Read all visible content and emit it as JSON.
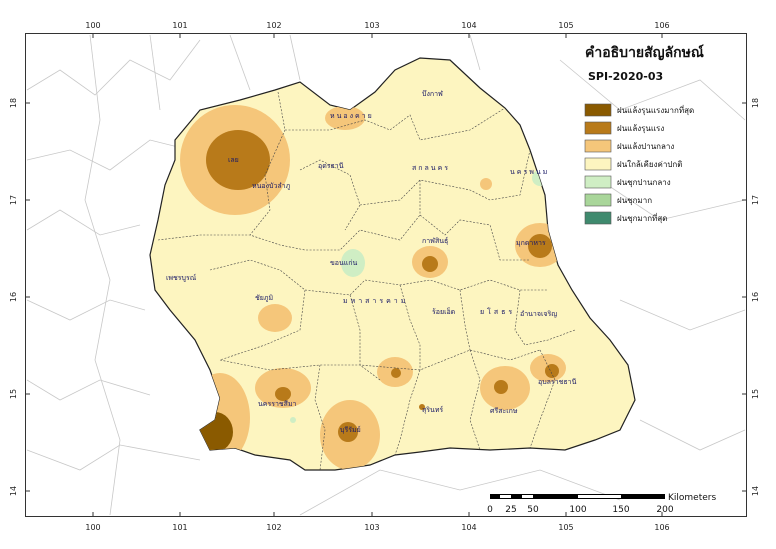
{
  "map": {
    "axes": {
      "x_ticks": [
        "100",
        "101",
        "102",
        "103",
        "104",
        "105",
        "106"
      ],
      "y_ticks": [
        "18",
        "17",
        "16",
        "15",
        "14"
      ]
    },
    "legend": {
      "title": "คำอธิบายสัญลักษณ์",
      "subtitle": "SPI-2020-03",
      "items": [
        {
          "label": "ฝนแล้งรุนแรงมากที่สุด",
          "color": "#8a5a00"
        },
        {
          "label": "ฝนแล้งรุนแรง",
          "color": "#b87a1a"
        },
        {
          "label": "ฝนแล้งปานกลาง",
          "color": "#f5c67a"
        },
        {
          "label": "ฝนใกล้เคียงค่าปกติ",
          "color": "#fdf5c0"
        },
        {
          "label": "ฝนชุกปานกลาง",
          "color": "#cfeec4"
        },
        {
          "label": "ฝนชุกมาก",
          "color": "#a9d69a"
        },
        {
          "label": "ฝนชุกมากที่สุด",
          "color": "#3f8a6e"
        }
      ]
    },
    "scale": {
      "unit": "Kilometers",
      "labels": [
        "0",
        "25",
        "50",
        "100",
        "150",
        "200"
      ]
    },
    "provinces": [
      "หนองคาย",
      "บึงกาฬ",
      "เลย",
      "อุดรธานี",
      "สกลนคร",
      "นครพนม",
      "หนองบัวลำภู",
      "ขอนแก่น",
      "กาฬสินธุ์",
      "มุกดาหาร",
      "เพชรบูรณ์",
      "ชัยภูมิ",
      "มหาสารคาม",
      "ร้อยเอ็ด",
      "ยโสธร",
      "อำนาจเจริญ",
      "นครราชสีมา",
      "บุรีรัมย์",
      "สุรินทร์",
      "ศรีสะเกษ",
      "อุบลราชธานี"
    ]
  }
}
